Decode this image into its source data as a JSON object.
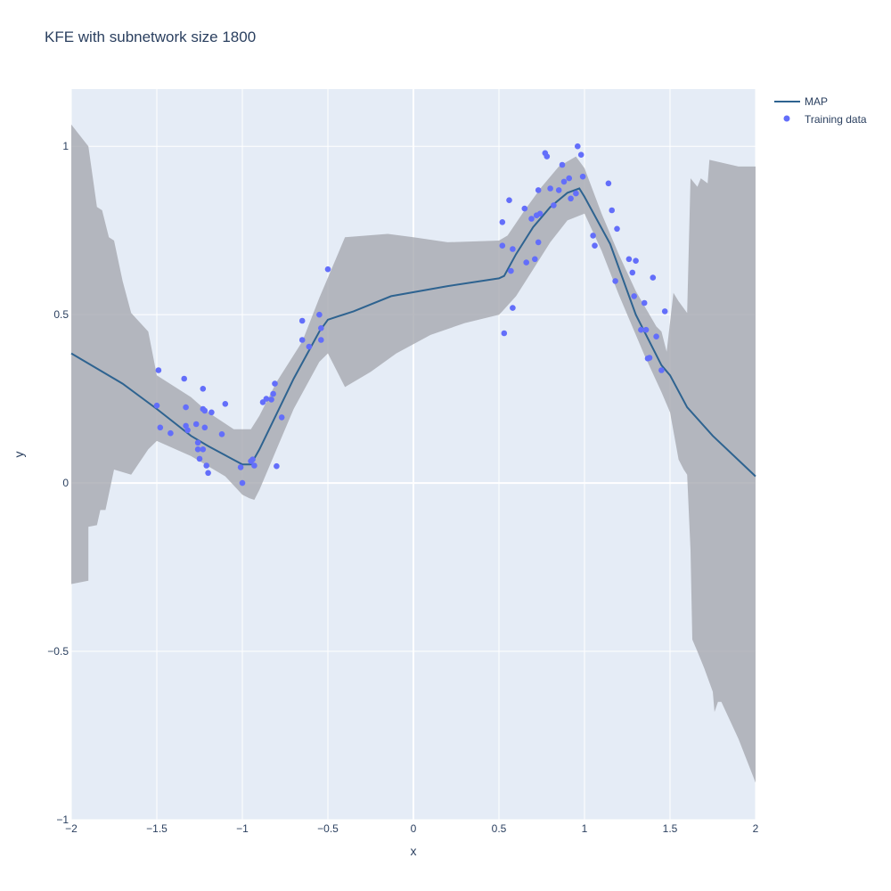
{
  "title": "KFE with subnetwork size 1800",
  "chart_data": {
    "type": "line",
    "title": "KFE with subnetwork size 1800",
    "xlabel": "x",
    "ylabel": "y",
    "xlim": [
      -2,
      2
    ],
    "ylim": [
      -1,
      1.17
    ],
    "xticks": [
      -2,
      -1.5,
      -1,
      -0.5,
      0,
      0.5,
      1,
      1.5,
      2
    ],
    "xtick_labels": [
      "−2",
      "−1.5",
      "−1",
      "−0.5",
      "0",
      "0.5",
      "1",
      "1.5",
      "2"
    ],
    "yticks": [
      -1,
      -0.5,
      0,
      0.5,
      1
    ],
    "ytick_labels": [
      "−1",
      "−0.5",
      "0",
      "0.5",
      "1"
    ],
    "grid": true,
    "legend_position": "top-right",
    "colors": {
      "map": "#2e6390",
      "training": "#636efa",
      "band": "#a6a9b0",
      "plot_bg": "#e5ecf6",
      "grid": "#ffffff"
    },
    "series": [
      {
        "name": "MAP",
        "kind": "line",
        "x": [
          -2,
          -1.7,
          -1.5,
          -1.3,
          -1.2,
          -1.0,
          -0.95,
          -0.9,
          -0.7,
          -0.55,
          -0.5,
          -0.35,
          -0.13,
          0.2,
          0.5,
          0.53,
          0.6,
          0.7,
          0.8,
          0.9,
          0.97,
          1.0,
          1.15,
          1.3,
          1.45,
          1.5,
          1.6,
          1.75,
          2.0
        ],
        "y": [
          0.385,
          0.295,
          0.22,
          0.14,
          0.11,
          0.055,
          0.055,
          0.1,
          0.31,
          0.45,
          0.485,
          0.51,
          0.555,
          0.585,
          0.608,
          0.615,
          0.68,
          0.76,
          0.82,
          0.862,
          0.875,
          0.85,
          0.71,
          0.5,
          0.35,
          0.32,
          0.225,
          0.14,
          0.02
        ]
      },
      {
        "name": "Training data",
        "kind": "scatter",
        "points": [
          [
            -1.5,
            0.23
          ],
          [
            -1.49,
            0.335
          ],
          [
            -1.48,
            0.165
          ],
          [
            -1.42,
            0.148
          ],
          [
            -1.34,
            0.31
          ],
          [
            -1.33,
            0.225
          ],
          [
            -1.33,
            0.17
          ],
          [
            -1.32,
            0.157
          ],
          [
            -1.27,
            0.175
          ],
          [
            -1.26,
            0.12
          ],
          [
            -1.26,
            0.1
          ],
          [
            -1.25,
            0.072
          ],
          [
            -1.23,
            0.28
          ],
          [
            -1.23,
            0.22
          ],
          [
            -1.22,
            0.215
          ],
          [
            -1.23,
            0.1
          ],
          [
            -1.22,
            0.165
          ],
          [
            -1.21,
            0.052
          ],
          [
            -1.2,
            0.03
          ],
          [
            -1.18,
            0.21
          ],
          [
            -1.12,
            0.145
          ],
          [
            -1.1,
            0.235
          ],
          [
            -1.01,
            0.047
          ],
          [
            -1.0,
            0.0
          ],
          [
            -0.95,
            0.065
          ],
          [
            -0.94,
            0.07
          ],
          [
            -0.93,
            0.052
          ],
          [
            -0.88,
            0.24
          ],
          [
            -0.86,
            0.25
          ],
          [
            -0.83,
            0.248
          ],
          [
            -0.82,
            0.265
          ],
          [
            -0.81,
            0.295
          ],
          [
            -0.8,
            0.05
          ],
          [
            -0.77,
            0.195
          ],
          [
            -0.65,
            0.482
          ],
          [
            -0.65,
            0.425
          ],
          [
            -0.61,
            0.405
          ],
          [
            -0.55,
            0.5
          ],
          [
            -0.54,
            0.46
          ],
          [
            -0.54,
            0.425
          ],
          [
            -0.5,
            0.635
          ],
          [
            0.52,
            0.775
          ],
          [
            0.52,
            0.705
          ],
          [
            0.53,
            0.445
          ],
          [
            0.56,
            0.84
          ],
          [
            0.57,
            0.63
          ],
          [
            0.58,
            0.695
          ],
          [
            0.58,
            0.52
          ],
          [
            0.65,
            0.815
          ],
          [
            0.66,
            0.655
          ],
          [
            0.69,
            0.785
          ],
          [
            0.71,
            0.665
          ],
          [
            0.72,
            0.795
          ],
          [
            0.73,
            0.715
          ],
          [
            0.73,
            0.87
          ],
          [
            0.74,
            0.8
          ],
          [
            0.77,
            0.98
          ],
          [
            0.78,
            0.97
          ],
          [
            0.8,
            0.875
          ],
          [
            0.82,
            0.825
          ],
          [
            0.85,
            0.87
          ],
          [
            0.87,
            0.945
          ],
          [
            0.88,
            0.895
          ],
          [
            0.91,
            0.905
          ],
          [
            0.92,
            0.845
          ],
          [
            0.96,
            1.0
          ],
          [
            0.95,
            0.86
          ],
          [
            0.98,
            0.975
          ],
          [
            0.99,
            0.91
          ],
          [
            1.05,
            0.735
          ],
          [
            1.06,
            0.705
          ],
          [
            1.14,
            0.89
          ],
          [
            1.16,
            0.81
          ],
          [
            1.18,
            0.6
          ],
          [
            1.19,
            0.755
          ],
          [
            1.26,
            0.665
          ],
          [
            1.28,
            0.625
          ],
          [
            1.29,
            0.555
          ],
          [
            1.3,
            0.66
          ],
          [
            1.33,
            0.455
          ],
          [
            1.35,
            0.535
          ],
          [
            1.36,
            0.455
          ],
          [
            1.37,
            0.37
          ],
          [
            1.38,
            0.372
          ],
          [
            1.4,
            0.61
          ],
          [
            1.42,
            0.435
          ],
          [
            1.45,
            0.335
          ],
          [
            1.47,
            0.51
          ]
        ]
      }
    ],
    "uncertainty_band": {
      "upper": [
        [
          -2,
          1.065
        ],
        [
          -1.9,
          1.0
        ],
        [
          -1.85,
          0.82
        ],
        [
          -1.82,
          0.81
        ],
        [
          -1.78,
          0.73
        ],
        [
          -1.75,
          0.72
        ],
        [
          -1.7,
          0.6
        ],
        [
          -1.65,
          0.505
        ],
        [
          -1.55,
          0.45
        ],
        [
          -1.5,
          0.32
        ],
        [
          -1.3,
          0.255
        ],
        [
          -1.2,
          0.21
        ],
        [
          -1.05,
          0.16
        ],
        [
          -0.95,
          0.16
        ],
        [
          -0.9,
          0.2
        ],
        [
          -0.8,
          0.3
        ],
        [
          -0.65,
          0.42
        ],
        [
          -0.55,
          0.55
        ],
        [
          -0.5,
          0.61
        ],
        [
          -0.4,
          0.73
        ],
        [
          -0.15,
          0.74
        ],
        [
          0.0,
          0.73
        ],
        [
          0.2,
          0.715
        ],
        [
          0.5,
          0.72
        ],
        [
          0.55,
          0.735
        ],
        [
          0.65,
          0.81
        ],
        [
          0.75,
          0.88
        ],
        [
          0.85,
          0.94
        ],
        [
          0.95,
          0.97
        ],
        [
          1.0,
          0.935
        ],
        [
          1.1,
          0.8
        ],
        [
          1.2,
          0.68
        ],
        [
          1.3,
          0.57
        ],
        [
          1.42,
          0.465
        ],
        [
          1.45,
          0.45
        ],
        [
          1.48,
          0.39
        ],
        [
          1.52,
          0.565
        ],
        [
          1.55,
          0.54
        ],
        [
          1.6,
          0.505
        ],
        [
          1.62,
          0.905
        ],
        [
          1.66,
          0.88
        ],
        [
          1.68,
          0.905
        ],
        [
          1.72,
          0.89
        ],
        [
          1.73,
          0.96
        ],
        [
          1.9,
          0.94
        ],
        [
          2.0,
          0.94
        ]
      ],
      "lower": [
        [
          2.0,
          -0.89
        ],
        [
          1.9,
          -0.76
        ],
        [
          1.8,
          -0.65
        ],
        [
          1.78,
          -0.65
        ],
        [
          1.76,
          -0.68
        ],
        [
          1.75,
          -0.62
        ],
        [
          1.7,
          -0.55
        ],
        [
          1.66,
          -0.5
        ],
        [
          1.63,
          -0.465
        ],
        [
          1.62,
          -0.2
        ],
        [
          1.6,
          0.025
        ],
        [
          1.58,
          0.04
        ],
        [
          1.55,
          0.07
        ],
        [
          1.5,
          0.21
        ],
        [
          1.45,
          0.27
        ],
        [
          1.35,
          0.38
        ],
        [
          1.2,
          0.56
        ],
        [
          1.1,
          0.69
        ],
        [
          1.0,
          0.8
        ],
        [
          0.9,
          0.78
        ],
        [
          0.8,
          0.715
        ],
        [
          0.7,
          0.635
        ],
        [
          0.6,
          0.555
        ],
        [
          0.52,
          0.51
        ],
        [
          0.5,
          0.5
        ],
        [
          0.3,
          0.475
        ],
        [
          0.1,
          0.44
        ],
        [
          -0.1,
          0.385
        ],
        [
          -0.25,
          0.33
        ],
        [
          -0.4,
          0.285
        ],
        [
          -0.5,
          0.385
        ],
        [
          -0.55,
          0.36
        ],
        [
          -0.7,
          0.22
        ],
        [
          -0.8,
          0.1
        ],
        [
          -0.9,
          -0.02
        ],
        [
          -0.93,
          -0.05
        ],
        [
          -0.96,
          -0.045
        ],
        [
          -1.0,
          -0.035
        ],
        [
          -1.1,
          0.02
        ],
        [
          -1.3,
          0.08
        ],
        [
          -1.5,
          0.125
        ],
        [
          -1.55,
          0.1
        ],
        [
          -1.65,
          0.025
        ],
        [
          -1.75,
          0.04
        ],
        [
          -1.8,
          -0.08
        ],
        [
          -1.83,
          -0.08
        ],
        [
          -1.85,
          -0.125
        ],
        [
          -1.9,
          -0.13
        ],
        [
          -1.9,
          -0.29
        ],
        [
          -2.0,
          -0.3
        ]
      ]
    }
  }
}
